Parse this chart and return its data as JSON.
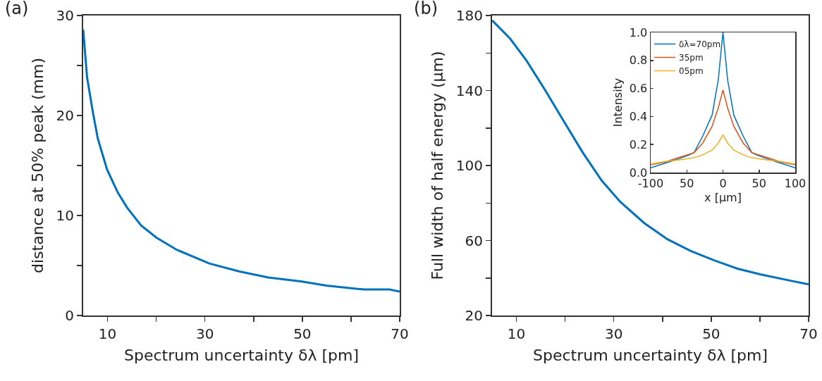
{
  "chart_data": [
    {
      "type": "line",
      "title": "(a)",
      "xlabel": "Spectrum uncertainty δλ [pm]",
      "ylabel": "distance at 50% peak (mm)",
      "xlim": [
        5,
        70
      ],
      "xticks": [
        10,
        {
          "value": 20,
          "label": null
        },
        30,
        {
          "value": 40,
          "label": null
        },
        50,
        {
          "value": 60,
          "label": null
        },
        70
      ],
      "ylim": [
        0,
        30
      ],
      "yticks": [
        0,
        {
          "value": 5,
          "label": null
        },
        10,
        {
          "value": 15,
          "label": null
        },
        20,
        {
          "value": 25,
          "label": null
        },
        30
      ],
      "marker": "none",
      "line_style": "solid",
      "series": [
        {
          "color": "#0072bd",
          "x": [
            5,
            5.8,
            7,
            8,
            9.9,
            12.1,
            14,
            16.9,
            20,
            24.1,
            30.9,
            37.1,
            43,
            49.9,
            54.9,
            62.7,
            67.9,
            70
          ],
          "values": [
            28.6,
            23.8,
            20.3,
            17.7,
            14.6,
            12.3,
            10.8,
            9.0,
            7.8,
            6.6,
            5.2,
            4.4,
            3.8,
            3.4,
            3.0,
            2.6,
            2.6,
            2.4
          ]
        }
      ]
    },
    {
      "type": "line",
      "title": "(b)",
      "xlabel": "Spectrum uncertainty δλ [pm]",
      "ylabel": "Full width of half energy (μm)",
      "xlim": [
        5,
        70
      ],
      "xticks": [
        10,
        {
          "value": 20,
          "label": null
        },
        30,
        {
          "value": 40,
          "label": null
        },
        50,
        {
          "value": 60,
          "label": null
        },
        70
      ],
      "ylim": [
        20,
        180
      ],
      "yticks": [
        20,
        {
          "value": 40,
          "label": null
        },
        60,
        {
          "value": 80,
          "label": null
        },
        100,
        {
          "value": 120,
          "label": null
        },
        140,
        {
          "value": 160,
          "label": null
        },
        180
      ],
      "marker": "none",
      "line_style": "solid",
      "series": [
        {
          "color": "#0072bd",
          "x": [
            5,
            8.7,
            12.1,
            15.9,
            19.8,
            23.6,
            27.5,
            31.3,
            36.2,
            41,
            45.8,
            50.6,
            55.4,
            60.2,
            65.1,
            70
          ],
          "values": [
            177.4,
            167.7,
            155.8,
            140.2,
            123.3,
            107,
            92,
            80.7,
            69.4,
            60.7,
            54.4,
            49.4,
            45,
            41.9,
            39.2,
            36.6
          ]
        }
      ]
    },
    {
      "type": "line",
      "xlabel": "x [μm]",
      "ylabel": "Intensity",
      "xlim": [
        -100,
        100
      ],
      "xticks": [
        -100,
        {
          "value": -50,
          "label": "50"
        },
        0,
        50,
        100
      ],
      "ylim": [
        0,
        1
      ],
      "yticks": [
        {
          "value": 0,
          "label": "0.0"
        },
        {
          "value": 0.2,
          "label": "0.2"
        },
        {
          "value": 0.4,
          "label": "0.4"
        },
        {
          "value": 0.6,
          "label": "0.6"
        },
        {
          "value": 0.8,
          "label": "0.8"
        },
        {
          "value": 1,
          "label": "1.0"
        }
      ],
      "legend": "top left",
      "marker": "none",
      "line_style": "solid",
      "x": [
        -100,
        -80,
        -60,
        -47,
        -40,
        -28,
        -15,
        -6.5,
        0,
        6.5,
        15,
        28,
        40,
        47,
        60,
        80,
        100
      ],
      "series": [
        {
          "name": "δλ=70pm",
          "color": "#0072bd",
          "values": [
            0.034,
            0.067,
            0.1,
            0.125,
            0.142,
            0.26,
            0.41,
            0.66,
            1.0,
            0.66,
            0.41,
            0.26,
            0.142,
            0.125,
            0.1,
            0.067,
            0.034
          ]
        },
        {
          "name": "35pm",
          "color": "#d95319",
          "values": [
            0.055,
            0.075,
            0.109,
            0.13,
            0.142,
            0.21,
            0.33,
            0.46,
            0.59,
            0.46,
            0.33,
            0.21,
            0.142,
            0.13,
            0.109,
            0.075,
            0.055
          ]
        },
        {
          "name": "05pm",
          "color": "#edb120",
          "values": [
            0.06,
            0.079,
            0.09,
            0.1,
            0.105,
            0.126,
            0.16,
            0.21,
            0.27,
            0.21,
            0.16,
            0.126,
            0.105,
            0.1,
            0.09,
            0.079,
            0.06
          ]
        }
      ]
    }
  ]
}
